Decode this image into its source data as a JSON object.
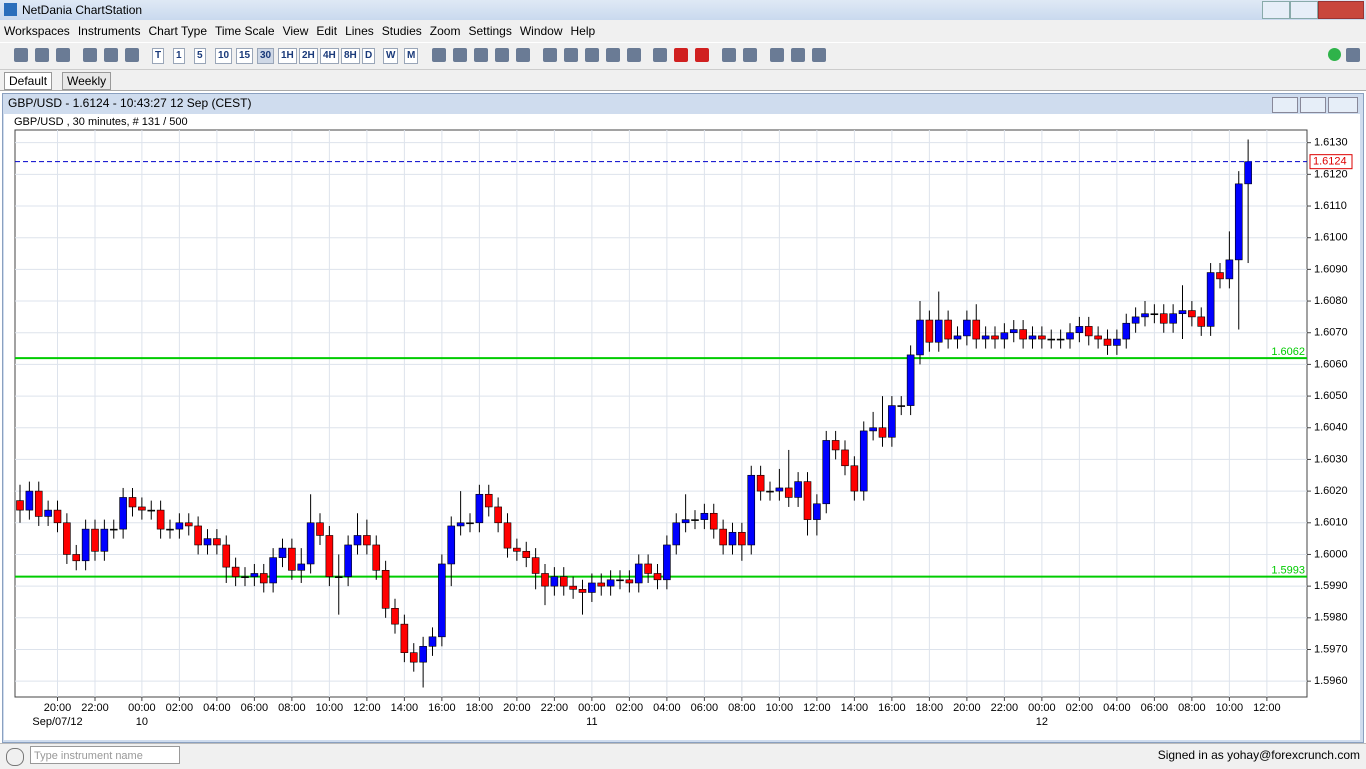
{
  "app": {
    "title": "NetDania ChartStation",
    "menu": [
      "Workspaces",
      "Instruments",
      "Chart Type",
      "Time Scale",
      "View",
      "Edit",
      "Lines",
      "Studies",
      "Zoom",
      "Settings",
      "Window",
      "Help"
    ],
    "timeframes": [
      "T",
      "1",
      "5",
      "10",
      "15",
      "30",
      "1H",
      "2H",
      "4H",
      "8H",
      "D",
      "W",
      "M"
    ],
    "tabs": [
      "Default",
      "Weekly"
    ],
    "window_title": "GBP/USD - 1.6124 - 10:43:27  12 Sep (CEST)",
    "chart_info": "GBP/USD , 30 minutes, # 131 / 500",
    "search_placeholder": "Type instrument name",
    "status": "Signed in as yohay@forexcrunch.com"
  },
  "chart_data": {
    "type": "candlestick",
    "categories": [
      null,
      null,
      null,
      null,
      "20:00",
      null,
      null,
      null,
      "22:00",
      null,
      null,
      null,
      null,
      "00:00",
      null,
      null,
      null,
      "02:00",
      null,
      null,
      null,
      "04:00",
      null,
      null,
      null,
      "06:00",
      null,
      null,
      null,
      "08:00",
      null,
      null,
      null,
      "10:00",
      null,
      null,
      null,
      "12:00",
      null,
      null,
      null,
      "14:00",
      null,
      null,
      null,
      "16:00",
      null,
      null,
      null,
      "18:00",
      null,
      null,
      null,
      "20:00",
      null,
      null,
      null,
      "22:00",
      null,
      null,
      null,
      "00:00",
      null,
      null,
      null,
      "02:00",
      null,
      null,
      null,
      "04:00",
      null,
      null,
      null,
      "06:00",
      null,
      null,
      null,
      "08:00",
      null,
      null,
      null,
      "10:00",
      null,
      null,
      null,
      "12:00",
      null,
      null,
      null,
      "14:00",
      null,
      null,
      null,
      "16:00",
      null,
      null,
      null,
      "18:00",
      null,
      null,
      null,
      "20:00",
      null,
      null,
      null,
      "22:00",
      null,
      null,
      null,
      "00:00",
      null,
      null,
      null,
      "02:00",
      null,
      null,
      null,
      "04:00",
      null,
      null,
      null,
      "06:00",
      null,
      null,
      null,
      "08:00",
      null,
      null,
      null,
      "10:00",
      null,
      null,
      null,
      "12:00"
    ],
    "date_labels": [
      null,
      null,
      null,
      null,
      "Sep/07/12",
      null,
      null,
      null,
      null,
      null,
      null,
      null,
      null,
      "10",
      null,
      null,
      null,
      null,
      null,
      null,
      null,
      null,
      null,
      null,
      null,
      null,
      null,
      null,
      null,
      null,
      null,
      null,
      null,
      null,
      null,
      null,
      null,
      null,
      null,
      null,
      null,
      null,
      null,
      null,
      null,
      null,
      null,
      null,
      null,
      null,
      null,
      null,
      null,
      null,
      null,
      null,
      null,
      null,
      null,
      null,
      null,
      "11",
      null,
      null,
      null,
      null,
      null,
      null,
      null,
      null,
      null,
      null,
      null,
      null,
      null,
      null,
      null,
      null,
      null,
      null,
      null,
      null,
      null,
      null,
      null,
      null,
      null,
      null,
      null,
      null,
      null,
      null,
      null,
      null,
      null,
      null,
      null,
      null,
      null,
      null,
      null,
      null,
      null,
      null,
      null,
      null,
      null,
      null,
      null,
      "12",
      null,
      null,
      null,
      null,
      null,
      null,
      null,
      null,
      null,
      null,
      null,
      null,
      null,
      null,
      null,
      null,
      null,
      null,
      null,
      null,
      null,
      null,
      null,
      null
    ],
    "open": [
      1.6017,
      1.6014,
      1.602,
      1.6012,
      1.6014,
      1.601,
      1.6,
      1.5998,
      1.6008,
      1.6001,
      1.6008,
      1.6008,
      1.6018,
      1.6015,
      1.6014,
      1.6014,
      1.6008,
      1.6008,
      1.601,
      1.6009,
      1.6003,
      1.6005,
      1.6003,
      1.5996,
      1.5993,
      1.5993,
      1.5994,
      1.5991,
      1.5999,
      1.6002,
      1.5995,
      1.5997,
      1.601,
      1.6006,
      1.5993,
      1.5993,
      1.6003,
      1.6006,
      1.6003,
      1.5995,
      1.5983,
      1.5978,
      1.5969,
      1.5966,
      1.5971,
      1.5974,
      1.5997,
      1.6009,
      1.601,
      1.601,
      1.6019,
      1.6015,
      1.601,
      1.6002,
      1.6001,
      1.5999,
      1.5994,
      1.599,
      1.5993,
      1.599,
      1.5989,
      1.5988,
      1.5991,
      1.599,
      1.5992,
      1.5992,
      1.5991,
      1.5997,
      1.5994,
      1.5992,
      1.6003,
      1.601,
      1.6011,
      1.6011,
      1.6013,
      1.6008,
      1.6003,
      1.6007,
      1.6003,
      1.6025,
      1.602,
      1.602,
      1.6021,
      1.6018,
      1.6023,
      1.6011,
      1.6016,
      1.6036,
      1.6033,
      1.6028,
      1.602,
      1.6039,
      1.604,
      1.6037,
      1.6047,
      1.6047,
      1.6063,
      1.6074,
      1.6067,
      1.6074,
      1.6068,
      1.6069,
      1.6074,
      1.6068,
      1.6069,
      1.6068,
      1.607,
      1.6071,
      1.6068,
      1.6069,
      1.6068,
      1.6068,
      1.6068,
      1.607,
      1.6072,
      1.6069,
      1.6068,
      1.6066,
      1.6068,
      1.6073,
      1.6075,
      1.6076,
      1.6076,
      1.6073,
      1.6076,
      1.6077,
      1.6075,
      1.6072,
      1.6089,
      1.6087,
      1.6093,
      1.6117,
      null,
      null
    ],
    "high": [
      1.6022,
      1.6023,
      1.6023,
      1.6017,
      1.6017,
      1.6013,
      1.6003,
      1.6011,
      1.6011,
      1.6011,
      1.6011,
      1.6021,
      1.6021,
      1.6018,
      1.6017,
      1.6017,
      1.6011,
      1.6013,
      1.6013,
      1.6012,
      1.6008,
      1.6008,
      1.6006,
      1.5999,
      1.5996,
      1.5997,
      1.5997,
      1.6002,
      1.6005,
      1.6005,
      1.6002,
      1.6019,
      1.6013,
      1.6009,
      1.6,
      1.6006,
      1.6013,
      1.6011,
      1.6006,
      1.5998,
      1.5986,
      1.5981,
      1.5972,
      1.5974,
      1.5977,
      1.6,
      1.6012,
      1.602,
      1.6013,
      1.6022,
      1.6022,
      1.6018,
      1.6013,
      1.6005,
      1.6004,
      1.6002,
      1.5997,
      1.5996,
      1.5996,
      1.5993,
      1.5992,
      1.5994,
      1.5994,
      1.5995,
      1.5995,
      1.5995,
      1.6,
      1.6,
      1.5997,
      1.6006,
      1.6013,
      1.6019,
      1.6014,
      1.6016,
      1.6016,
      1.6011,
      1.601,
      1.601,
      1.6028,
      1.6028,
      1.6023,
      1.6027,
      1.6033,
      1.6026,
      1.6026,
      1.6019,
      1.6039,
      1.6039,
      1.6036,
      1.6031,
      1.6042,
      1.6045,
      1.605,
      1.605,
      1.605,
      1.6066,
      1.608,
      1.6077,
      1.6083,
      1.6077,
      1.6072,
      1.6077,
      1.6079,
      1.6072,
      1.6072,
      1.6073,
      1.6074,
      1.6074,
      1.6072,
      1.6072,
      1.6071,
      1.6071,
      1.6073,
      1.6075,
      1.6075,
      1.6072,
      1.6071,
      1.6071,
      1.6076,
      1.6078,
      1.608,
      1.6079,
      1.6079,
      1.6079,
      1.6085,
      1.608,
      1.6078,
      1.6092,
      1.6092,
      1.6102,
      1.6121,
      1.6131,
      null,
      null
    ],
    "low": [
      1.601,
      1.6011,
      1.6009,
      1.6009,
      1.6007,
      1.5997,
      1.5995,
      1.5995,
      1.5998,
      1.5998,
      1.6005,
      1.6005,
      1.6012,
      1.6011,
      1.6011,
      1.6005,
      1.6005,
      1.6005,
      1.6006,
      1.6,
      1.6,
      1.6,
      1.5991,
      1.599,
      1.599,
      1.599,
      1.5988,
      1.5988,
      1.5996,
      1.5992,
      1.5991,
      1.5994,
      1.6003,
      1.599,
      1.5981,
      1.599,
      1.6,
      1.6,
      1.5992,
      1.598,
      1.5975,
      1.5966,
      1.5963,
      1.5958,
      1.5968,
      1.5971,
      1.599,
      1.6006,
      1.6007,
      1.6007,
      1.6012,
      1.6007,
      1.5999,
      1.5998,
      1.5996,
      1.5989,
      1.5984,
      1.5987,
      1.5987,
      1.5986,
      1.5981,
      1.5985,
      1.5987,
      1.5987,
      1.5989,
      1.5988,
      1.5988,
      1.5991,
      1.5989,
      1.5989,
      1.6,
      1.6007,
      1.6008,
      1.6008,
      1.6005,
      1.6,
      1.6,
      1.5998,
      1.6,
      1.6017,
      1.6017,
      1.6017,
      1.6015,
      1.6015,
      1.6006,
      1.6006,
      1.6013,
      1.603,
      1.6025,
      1.6017,
      1.6017,
      1.6036,
      1.6034,
      1.6034,
      1.6044,
      1.6044,
      1.606,
      1.6064,
      1.6064,
      1.6065,
      1.6065,
      1.6066,
      1.6065,
      1.6065,
      1.6065,
      1.6065,
      1.6067,
      1.6065,
      1.6065,
      1.6065,
      1.6065,
      1.6065,
      1.6065,
      1.6067,
      1.6066,
      1.6065,
      1.6063,
      1.6063,
      1.6065,
      1.607,
      1.6072,
      1.6073,
      1.607,
      1.607,
      1.6068,
      1.6072,
      1.6069,
      1.6069,
      1.6084,
      1.6084,
      1.6071,
      1.6092,
      null,
      null
    ],
    "close": [
      1.6014,
      1.602,
      1.6012,
      1.6014,
      1.601,
      1.6,
      1.5998,
      1.6008,
      1.6001,
      1.6008,
      1.6008,
      1.6018,
      1.6015,
      1.6014,
      1.6014,
      1.6008,
      1.6008,
      1.601,
      1.6009,
      1.6003,
      1.6005,
      1.6003,
      1.5996,
      1.5993,
      1.5993,
      1.5994,
      1.5991,
      1.5999,
      1.6002,
      1.5995,
      1.5997,
      1.601,
      1.6006,
      1.5993,
      1.5993,
      1.6003,
      1.6006,
      1.6003,
      1.5995,
      1.5983,
      1.5978,
      1.5969,
      1.5966,
      1.5971,
      1.5974,
      1.5997,
      1.6009,
      1.601,
      1.601,
      1.6019,
      1.6015,
      1.601,
      1.6002,
      1.6001,
      1.5999,
      1.5994,
      1.599,
      1.5993,
      1.599,
      1.5989,
      1.5988,
      1.5991,
      1.599,
      1.5992,
      1.5992,
      1.5991,
      1.5997,
      1.5994,
      1.5992,
      1.6003,
      1.601,
      1.6011,
      1.6011,
      1.6013,
      1.6008,
      1.6003,
      1.6007,
      1.6003,
      1.6025,
      1.602,
      1.602,
      1.6021,
      1.6018,
      1.6023,
      1.6011,
      1.6016,
      1.6036,
      1.6033,
      1.6028,
      1.602,
      1.6039,
      1.604,
      1.6037,
      1.6047,
      1.6047,
      1.6063,
      1.6074,
      1.6067,
      1.6074,
      1.6068,
      1.6069,
      1.6074,
      1.6068,
      1.6069,
      1.6068,
      1.607,
      1.6071,
      1.6068,
      1.6069,
      1.6068,
      1.6068,
      1.6068,
      1.607,
      1.6072,
      1.6069,
      1.6068,
      1.6066,
      1.6068,
      1.6073,
      1.6075,
      1.6076,
      1.6076,
      1.6073,
      1.6076,
      1.6077,
      1.6075,
      1.6072,
      1.6089,
      1.6087,
      1.6093,
      1.6117,
      1.6124,
      null,
      null
    ],
    "up_color": "#0000ff",
    "down_color": "#ff0000",
    "ylim": [
      1.5955,
      1.6134
    ],
    "yticks": [
      {
        "value": 1.596,
        "label": "1.5960"
      },
      {
        "value": 1.597,
        "label": "1.5970"
      },
      {
        "value": 1.598,
        "label": "1.5980"
      },
      {
        "value": 1.599,
        "label": "1.5990"
      },
      {
        "value": 1.6,
        "label": "1.6000"
      },
      {
        "value": 1.601,
        "label": "1.6010"
      },
      {
        "value": 1.602,
        "label": "1.6020"
      },
      {
        "value": 1.603,
        "label": "1.6030"
      },
      {
        "value": 1.604,
        "label": "1.6040"
      },
      {
        "value": 1.605,
        "label": "1.6050"
      },
      {
        "value": 1.606,
        "label": "1.6060"
      },
      {
        "value": 1.607,
        "label": "1.6070"
      },
      {
        "value": 1.608,
        "label": "1.6080"
      },
      {
        "value": 1.609,
        "label": "1.6090"
      },
      {
        "value": 1.61,
        "label": "1.6100"
      },
      {
        "value": 1.611,
        "label": "1.6110"
      },
      {
        "value": 1.612,
        "label": "1.6120"
      },
      {
        "value": 1.613,
        "label": "1.6130"
      }
    ],
    "grid": true,
    "last_price": {
      "value": 1.6124,
      "color": "#0000cc"
    },
    "hlines": [
      {
        "value": 1.6062,
        "color": "#00cc00"
      },
      {
        "value": 1.5993,
        "color": "#00cc00"
      }
    ]
  }
}
